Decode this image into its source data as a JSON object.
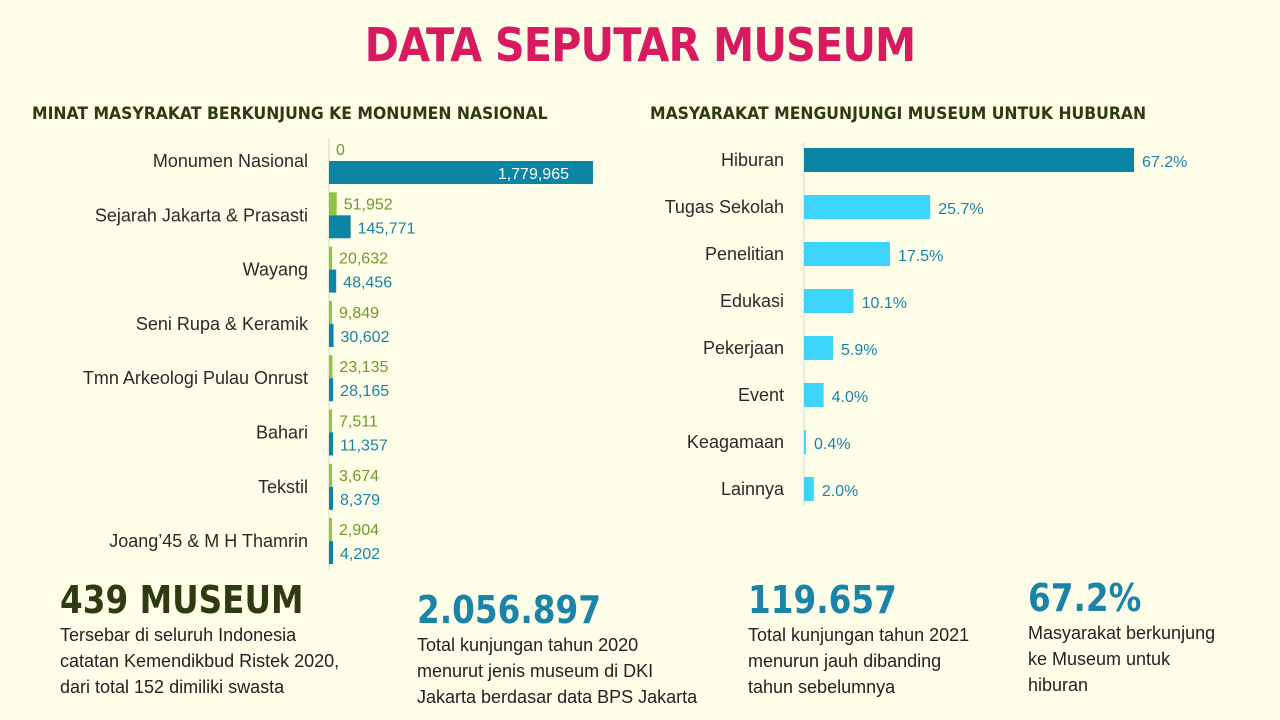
{
  "title": "DATA SEPUTAR MUSEUM",
  "colors": {
    "title": "#d81b60",
    "green": "#8cc63f",
    "teal": "#0a85a5",
    "cyan": "#3dd5fb",
    "green_text": "#6f9a2a",
    "teal_text": "#1a84a8",
    "dark_olive": "#2e3a0f"
  },
  "chart_data": [
    {
      "type": "bar",
      "orientation": "horizontal",
      "title": "MINAT MASYRAKAT BERKUNJUNG KE MONUMEN NASIONAL",
      "categories": [
        "Monumen Nasional",
        "Sejarah Jakarta & Prasasti",
        "Wayang",
        "Seni Rupa & Keramik",
        "Tmn Arkeologi Pulau Onrust",
        "Bahari",
        "Tekstil",
        "Joang’45 & M H Thamrin"
      ],
      "series": [
        {
          "values": [
            0,
            51952,
            20632,
            9849,
            23135,
            7511,
            3674,
            2904
          ],
          "labels": [
            "0",
            "51,952",
            "20,632",
            "9,849",
            "23,135",
            "7,511",
            "3,674",
            "2,904"
          ],
          "color": "#8cc63f"
        },
        {
          "values": [
            1779965,
            145771,
            48456,
            30602,
            28165,
            11357,
            8379,
            4202
          ],
          "labels": [
            "1,779,965",
            "145,771",
            "48,456",
            "30,602",
            "28,165",
            "11,357",
            "8,379",
            "4,202"
          ],
          "color": "#0a85a5"
        }
      ],
      "grid": false
    },
    {
      "type": "bar",
      "orientation": "horizontal",
      "title": "MASYARAKAT MENGUNJUNGI MUSEUM UNTUK HUBURAN",
      "categories": [
        "Hiburan",
        "Tugas Sekolah",
        "Penelitian",
        "Edukasi",
        "Pekerjaan",
        "Event",
        "Keagamaan",
        "Lainnya"
      ],
      "values": [
        67.2,
        25.7,
        17.5,
        10.1,
        5.9,
        4.0,
        0.4,
        2.0
      ],
      "labels": [
        "67.2%",
        "25.7%",
        "17.5%",
        "10.1%",
        "5.9%",
        "4.0%",
        "0.4%",
        "2.0%"
      ],
      "highlight_color": "#0a85a5",
      "color": "#3dd5fb",
      "grid": false
    }
  ],
  "stats": [
    {
      "value": "439 MUSEUM",
      "desc": [
        "Tersebar di seluruh Indonesia",
        "catatan Kemendikbud Ristek 2020,",
        "dari total 152 dimiliki swasta"
      ]
    },
    {
      "value": "2.056.897",
      "desc": [
        "Total kunjungan tahun 2020",
        "menurut jenis museum di DKI",
        "Jakarta berdasar data BPS Jakarta"
      ]
    },
    {
      "value": "119.657",
      "desc": [
        "Total kunjungan tahun 2021",
        "menurun jauh dibanding",
        "tahun sebelumnya"
      ]
    },
    {
      "value": "67.2%",
      "desc": [
        "Masyarakat berkunjung",
        "ke Museum untuk",
        "hiburan"
      ]
    }
  ]
}
